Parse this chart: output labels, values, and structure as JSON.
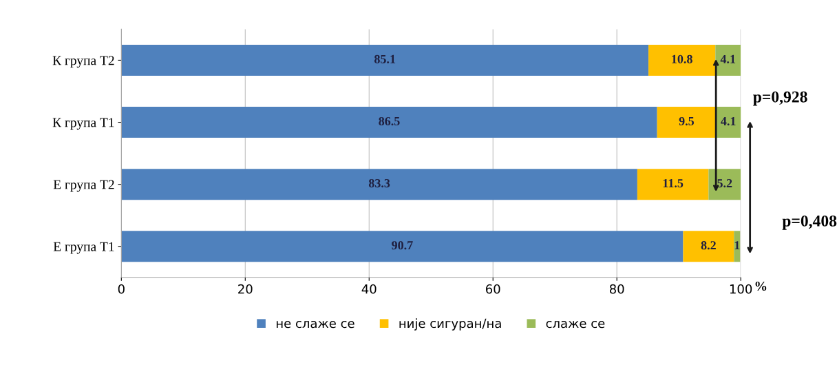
{
  "chart_data": {
    "type": "bar",
    "orientation": "horizontal",
    "stacked": true,
    "categories": [
      "К група Т2",
      "К група Т1",
      "Е група Т2",
      "Е група Т1"
    ],
    "series": [
      {
        "name": "не слаже се",
        "color": "#4f81bd",
        "values": [
          85.1,
          86.5,
          83.3,
          90.7
        ]
      },
      {
        "name": "није сигуран/на",
        "color": "#ffc000",
        "values": [
          10.8,
          9.5,
          11.5,
          8.2
        ]
      },
      {
        "name": "слаже се",
        "color": "#9bbb59",
        "values": [
          4.1,
          4.1,
          5.2,
          1
        ]
      }
    ],
    "xlim": [
      0,
      100
    ],
    "xticks": [
      0,
      20,
      40,
      60,
      80,
      100
    ],
    "xlabel": "%",
    "grid": "x",
    "legend": "bottom",
    "data_labels": true,
    "annotations": [
      "p=0,928",
      "p=0,408"
    ]
  }
}
